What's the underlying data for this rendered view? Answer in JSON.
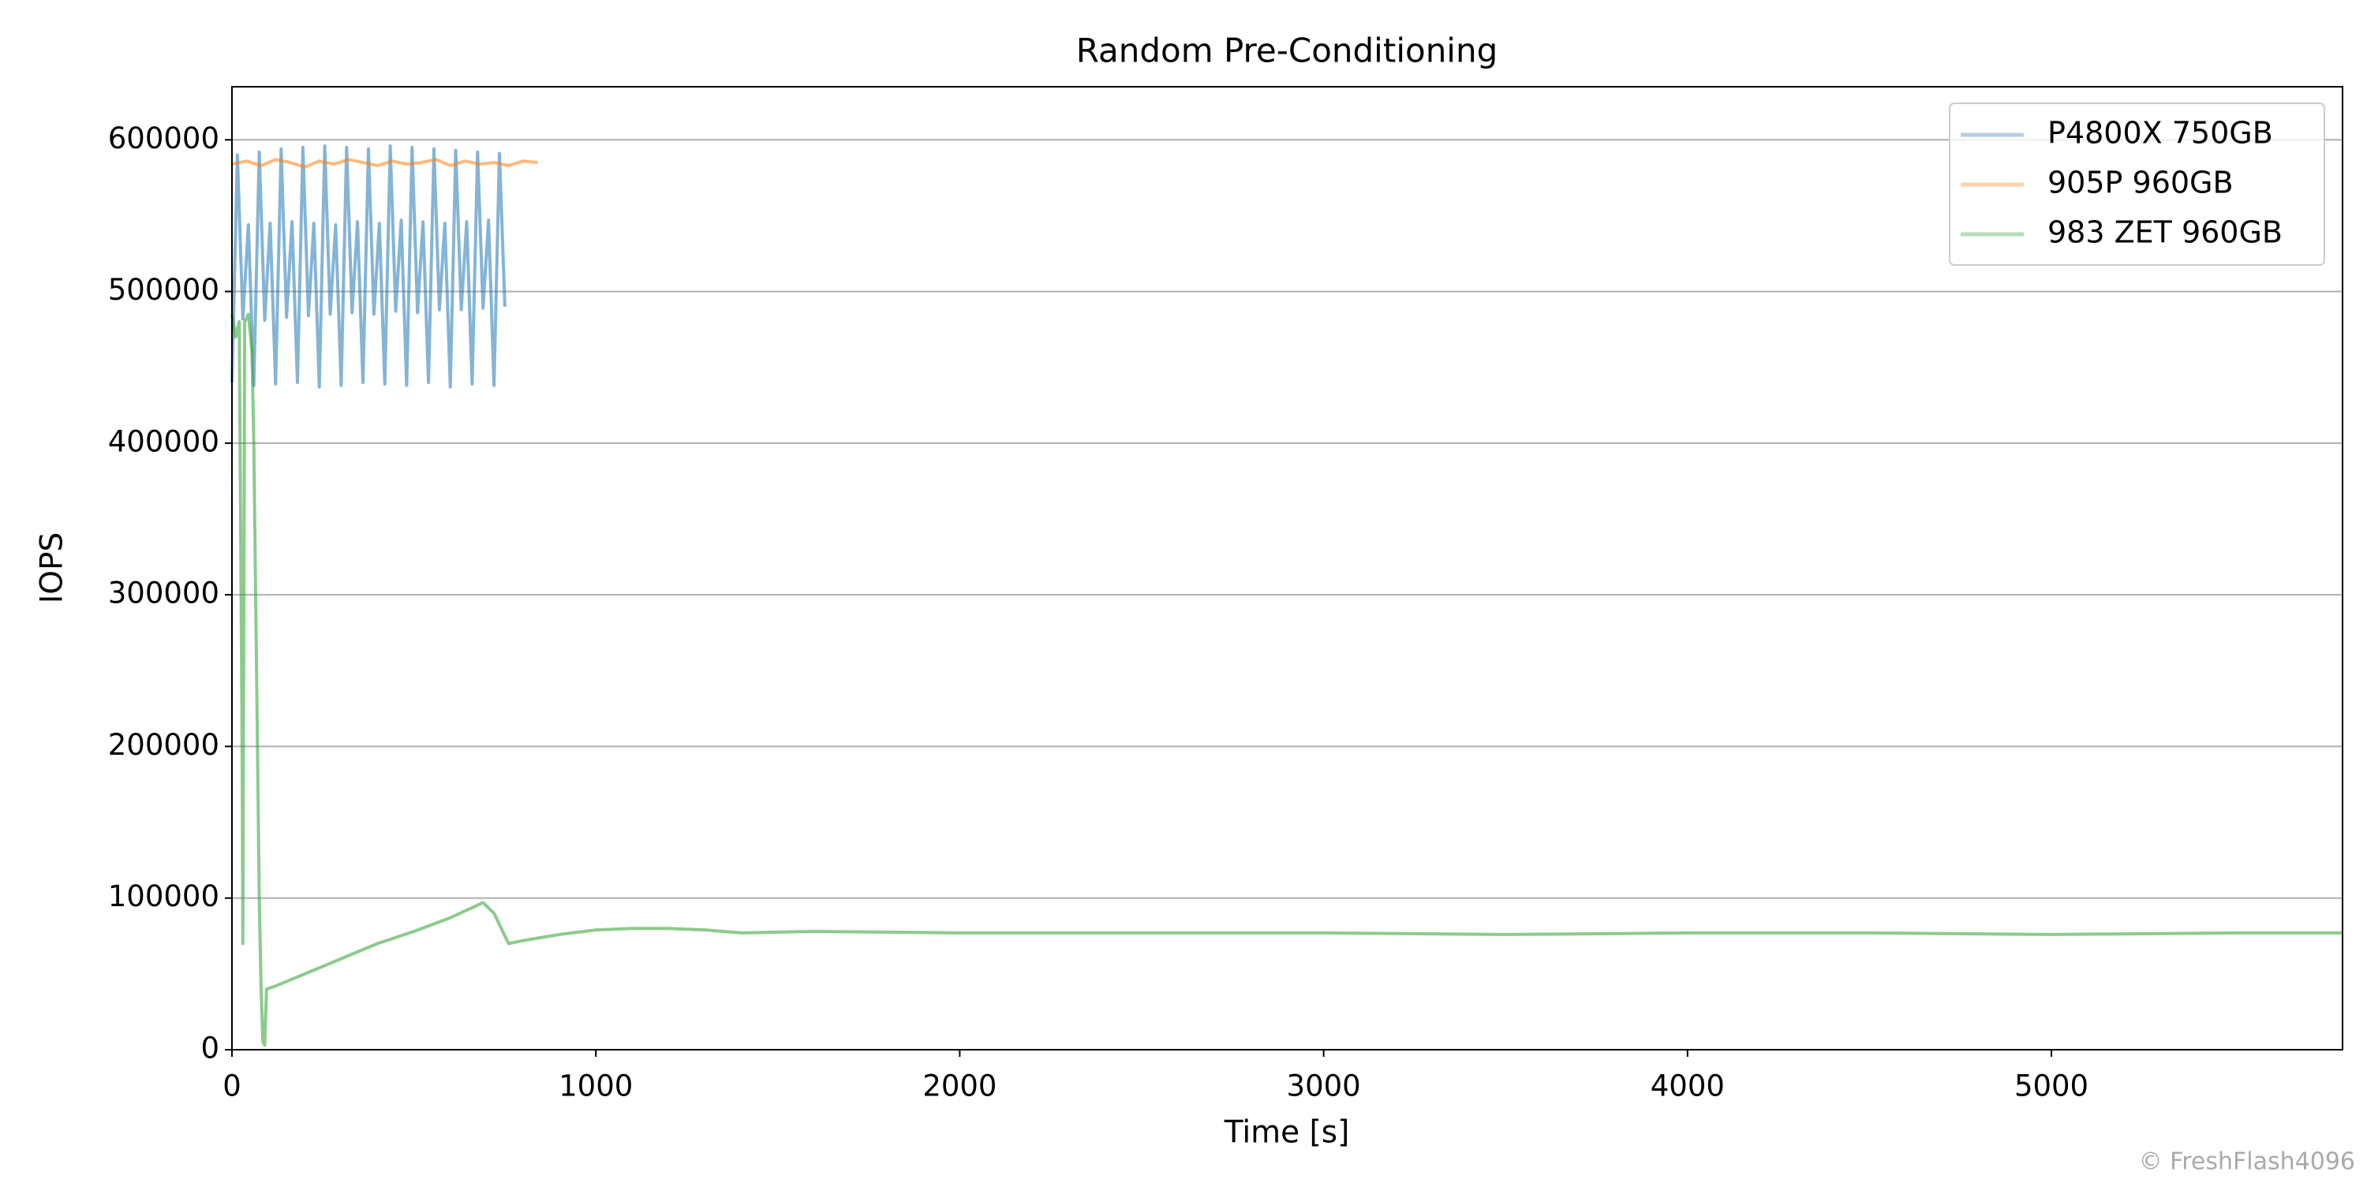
{
  "chart_data": {
    "type": "line",
    "title": "Random Pre-Conditioning",
    "x_label": "Time [s]",
    "y_label": "IOPS",
    "watermark": "© FreshFlash4096",
    "xlim": [
      0,
      5800
    ],
    "ylim": [
      0,
      635000
    ],
    "xticks": [
      0,
      1000,
      2000,
      3000,
      4000,
      5000
    ],
    "yticks": [
      0,
      100000,
      200000,
      300000,
      400000,
      500000,
      600000
    ],
    "grid": true,
    "legend": "upper right",
    "series": [
      {
        "name": "P4800X 750GB",
        "color": "#1f77b4",
        "x": [
          0,
          15,
          30,
          45,
          60,
          75,
          90,
          105,
          120,
          135,
          150,
          165,
          180,
          195,
          210,
          225,
          240,
          255,
          270,
          285,
          300,
          315,
          330,
          345,
          360,
          375,
          390,
          405,
          420,
          435,
          450,
          465,
          480,
          495,
          510,
          525,
          540,
          555,
          570,
          585,
          600,
          615,
          630,
          645,
          660,
          675,
          690,
          705,
          720,
          735,
          750
        ],
        "values": [
          440000,
          590000,
          482000,
          544000,
          438000,
          592000,
          481000,
          545000,
          439000,
          594000,
          483000,
          546000,
          440000,
          595000,
          484000,
          545000,
          437000,
          596000,
          485000,
          544000,
          438000,
          595000,
          486000,
          546000,
          440000,
          594000,
          485000,
          545000,
          439000,
          596000,
          487000,
          547000,
          438000,
          595000,
          486000,
          546000,
          440000,
          594000,
          488000,
          545000,
          437000,
          593000,
          488000,
          546000,
          439000,
          592000,
          489000,
          547000,
          438000,
          591000,
          490000
        ]
      },
      {
        "name": "905P 960GB",
        "color": "#ff7f0e",
        "x": [
          0,
          40,
          80,
          120,
          160,
          200,
          240,
          280,
          320,
          360,
          400,
          440,
          480,
          520,
          560,
          600,
          640,
          680,
          720,
          760,
          800,
          840
        ],
        "values": [
          584000,
          586000,
          583000,
          587000,
          585000,
          582000,
          586000,
          584000,
          587000,
          585000,
          583000,
          586000,
          584000,
          585000,
          587000,
          583000,
          586000,
          584000,
          585000,
          583000,
          586000,
          585000
        ]
      },
      {
        "name": "983 ZET 960GB",
        "color": "#2ca02c",
        "x": [
          0,
          10,
          20,
          28,
          30,
          35,
          45,
          55,
          60,
          65,
          70,
          75,
          80,
          85,
          90,
          95,
          120,
          200,
          300,
          400,
          500,
          600,
          690,
          720,
          760,
          800,
          900,
          1000,
          1100,
          1200,
          1300,
          1400,
          1600,
          2000,
          2500,
          3000,
          3500,
          4000,
          4500,
          5000,
          5500,
          5800
        ],
        "values": [
          485000,
          470000,
          480000,
          200000,
          70000,
          480000,
          485000,
          460000,
          400000,
          300000,
          200000,
          100000,
          40000,
          5000,
          3000,
          40000,
          42000,
          50000,
          60000,
          70000,
          78000,
          87000,
          97000,
          90000,
          70000,
          72000,
          76000,
          79000,
          80000,
          80000,
          79000,
          77000,
          78000,
          77000,
          77000,
          77000,
          76000,
          77000,
          77000,
          76000,
          77000,
          77000
        ]
      }
    ]
  }
}
